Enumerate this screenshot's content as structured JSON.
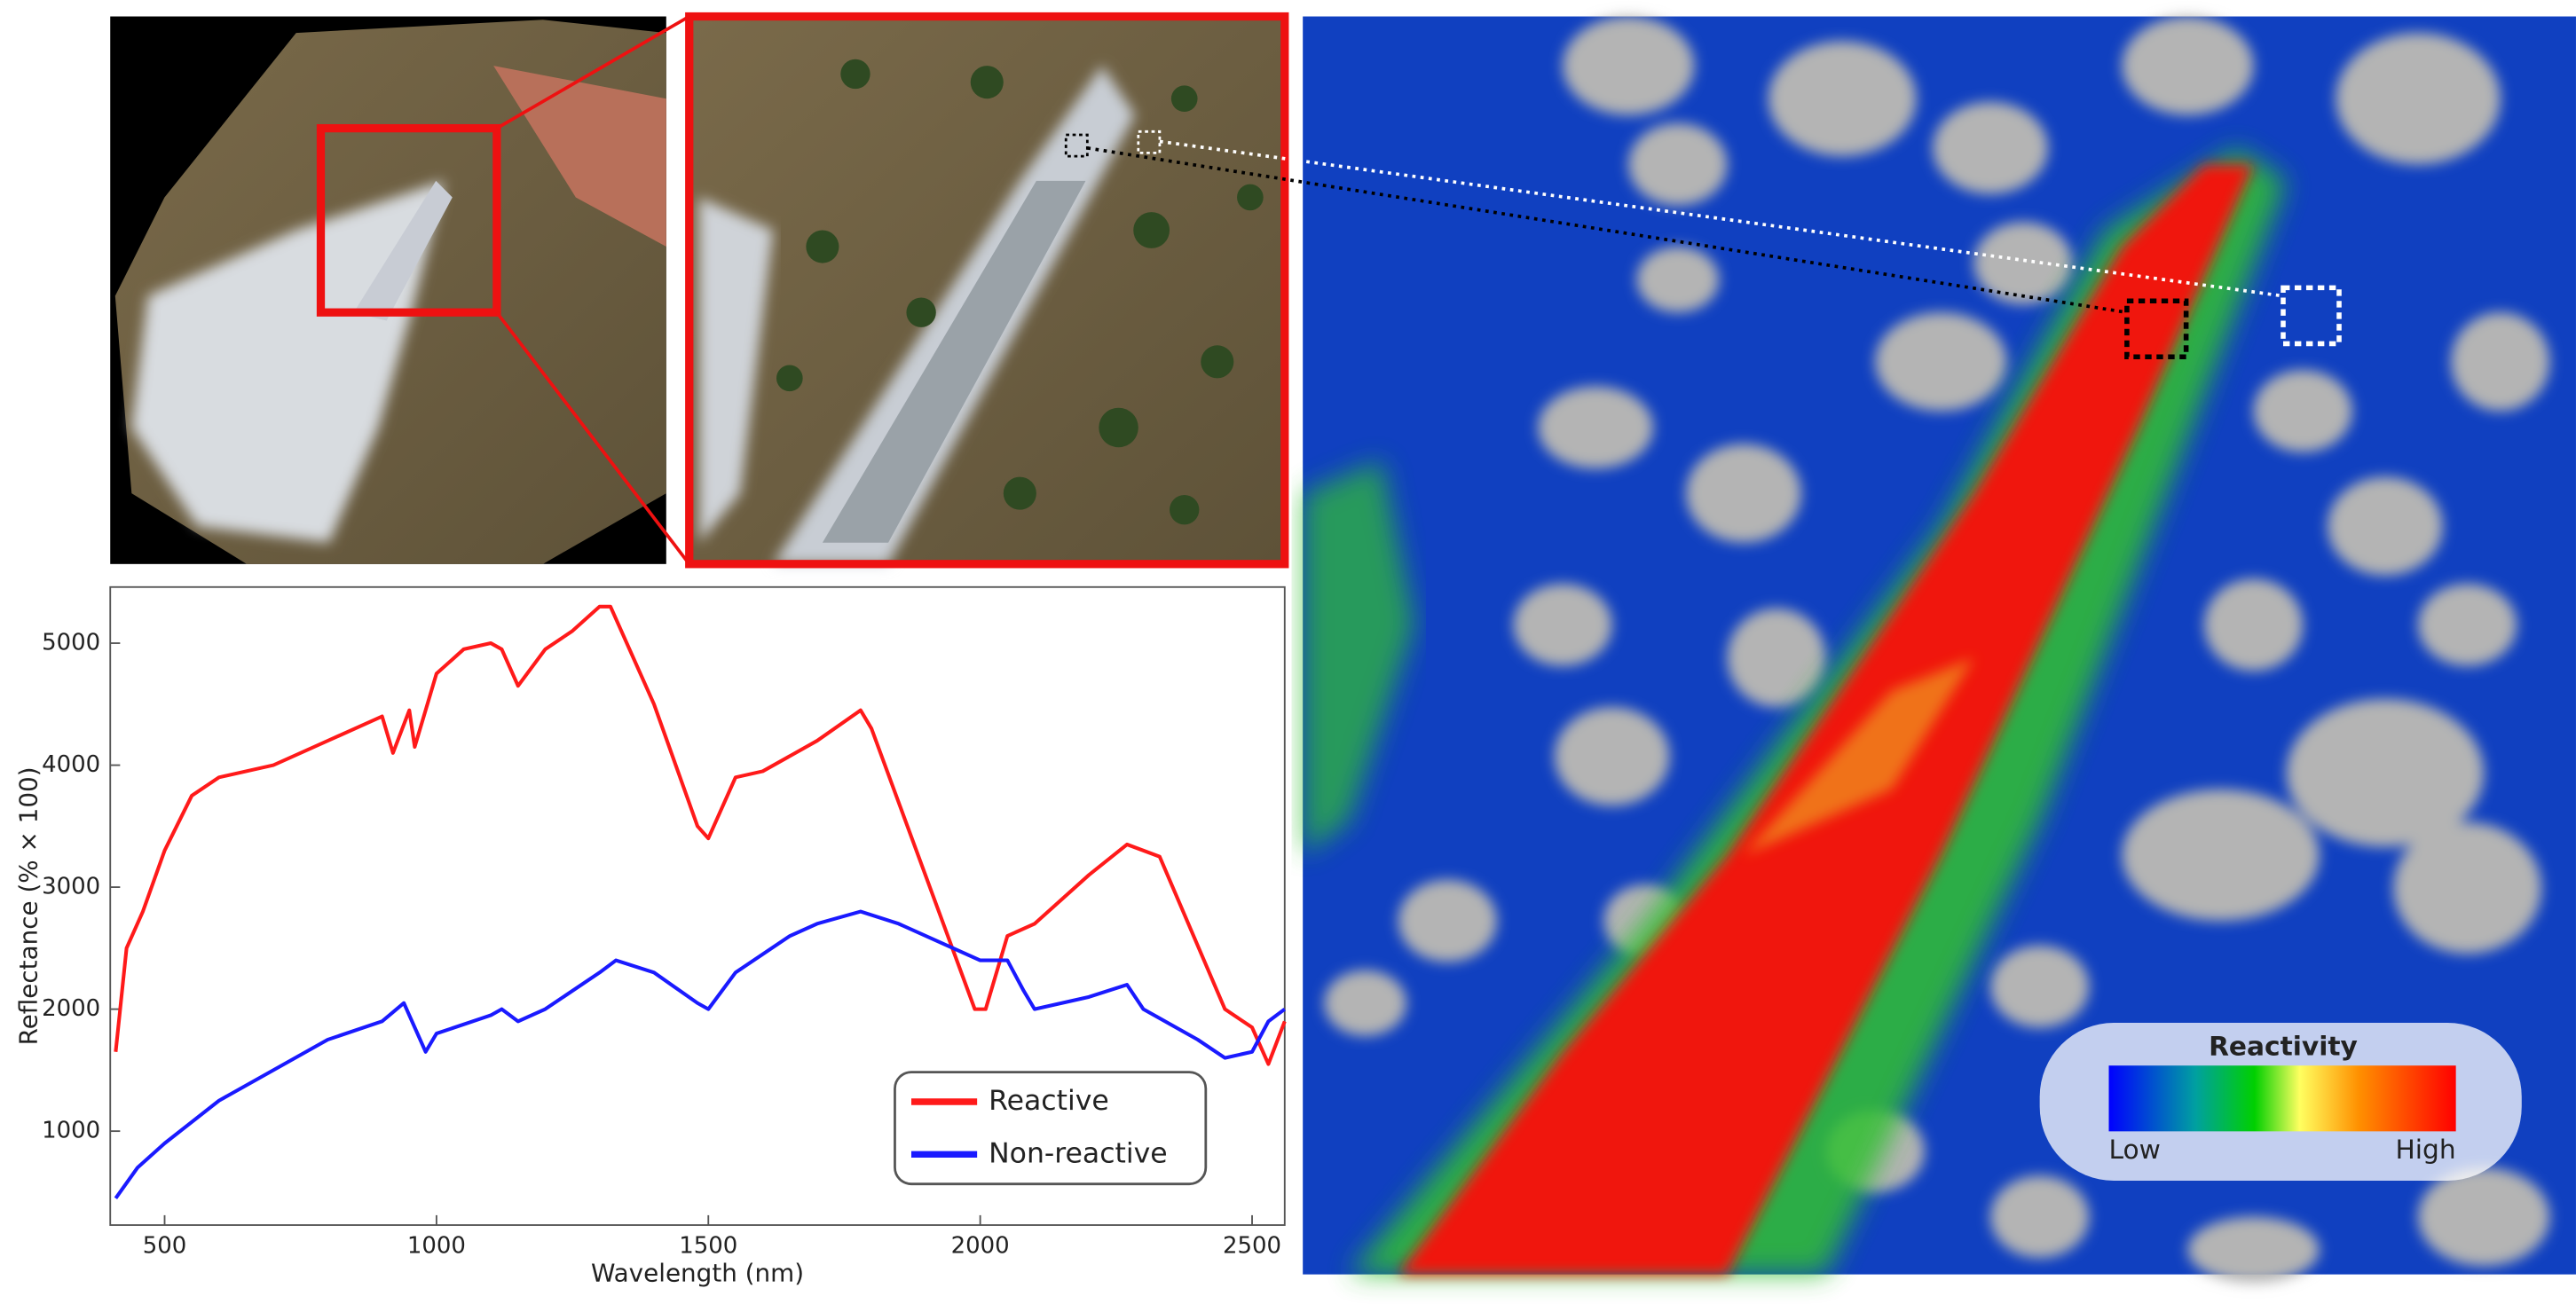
{
  "chart_data": {
    "type": "line",
    "x_label": "Wavelength (nm)",
    "y_label": "Reflectance (% × 100)",
    "xlim": [
      400,
      2560
    ],
    "xticks": [
      500,
      1000,
      1500,
      2000,
      2500
    ],
    "ylim": [
      230,
      5460
    ],
    "yticks": [
      1000,
      2000,
      3000,
      4000,
      5000
    ],
    "grid": false,
    "legend": "lower right",
    "series": [
      {
        "name": "Reactive",
        "color": "#ff1a1a",
        "x": [
          410,
          430,
          460,
          500,
          550,
          600,
          700,
          800,
          900,
          920,
          950,
          960,
          1000,
          1050,
          1100,
          1120,
          1150,
          1200,
          1250,
          1300,
          1320,
          1400,
          1480,
          1500,
          1550,
          1600,
          1700,
          1780,
          1800,
          1990,
          2010,
          2050,
          2100,
          2200,
          2270,
          2300,
          2330,
          2450,
          2500,
          2530,
          2560
        ],
        "values": [
          1650,
          2500,
          2800,
          3300,
          3750,
          3900,
          4000,
          4200,
          4400,
          4100,
          4450,
          4150,
          4750,
          4950,
          5000,
          4950,
          4650,
          4950,
          5100,
          5300,
          5300,
          4500,
          3500,
          3400,
          3900,
          3950,
          4200,
          4450,
          4300,
          2000,
          2000,
          2600,
          2700,
          3100,
          3350,
          3300,
          3250,
          2000,
          1850,
          1550,
          1900
        ]
      },
      {
        "name": "Non-reactive",
        "color": "#1a1aff",
        "x": [
          410,
          450,
          500,
          600,
          700,
          800,
          900,
          940,
          960,
          980,
          1000,
          1100,
          1120,
          1150,
          1200,
          1300,
          1330,
          1400,
          1480,
          1500,
          1550,
          1650,
          1700,
          1780,
          1850,
          2000,
          2050,
          2080,
          2100,
          2200,
          2270,
          2300,
          2400,
          2450,
          2500,
          2530,
          2560
        ],
        "values": [
          450,
          700,
          900,
          1250,
          1500,
          1750,
          1900,
          2050,
          1850,
          1650,
          1800,
          1950,
          2000,
          1900,
          2000,
          2300,
          2400,
          2300,
          2050,
          2000,
          2300,
          2600,
          2700,
          2800,
          2700,
          2400,
          2400,
          2150,
          2000,
          2100,
          2200,
          2000,
          1750,
          1600,
          1650,
          1900,
          2000
        ]
      }
    ]
  },
  "map": {
    "colorbar": {
      "title": "Reactivity",
      "low": "Low",
      "high": "High"
    }
  }
}
